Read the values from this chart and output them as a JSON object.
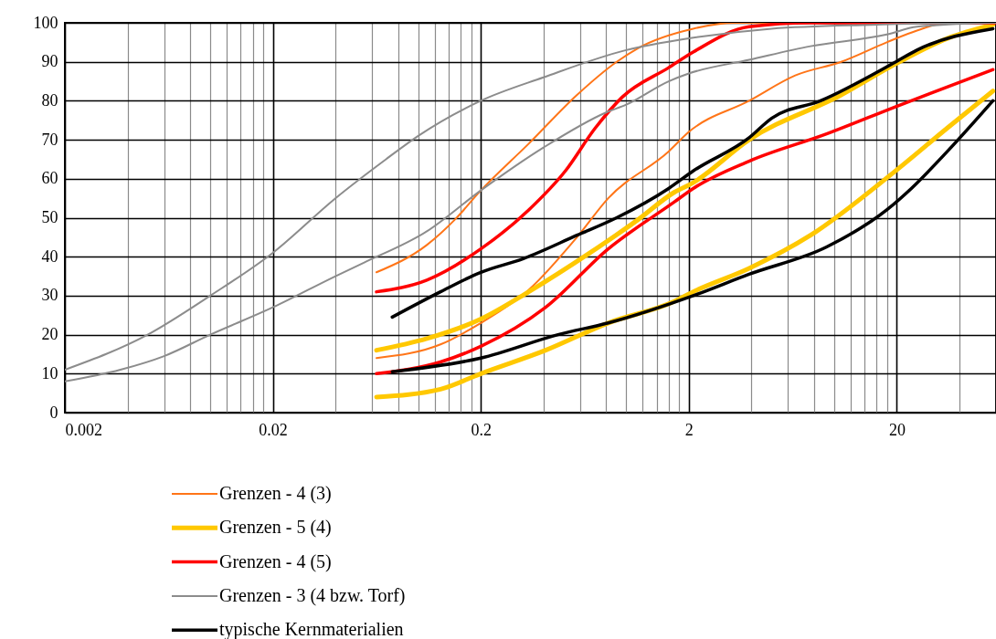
{
  "chart_data": {
    "type": "line",
    "log": "x",
    "grid": true,
    "legend": "bottom",
    "marker": "none",
    "line_style": "solid",
    "xlim": [
      0.002,
      60
    ],
    "ylim": [
      0,
      100
    ],
    "yticks": [
      0,
      10,
      20,
      30,
      40,
      50,
      60,
      70,
      80,
      90,
      100
    ],
    "xticks": [
      0.002,
      {
        "value": 0.004,
        "label": null
      },
      {
        "value": 0.006,
        "label": null
      },
      {
        "value": 0.008,
        "label": null
      },
      {
        "value": 0.01,
        "label": null
      },
      {
        "value": 0.012,
        "label": null
      },
      {
        "value": 0.014,
        "label": null
      },
      {
        "value": 0.016,
        "label": null
      },
      {
        "value": 0.018,
        "label": null
      },
      0.02,
      {
        "value": 0.04,
        "label": null
      },
      {
        "value": 0.06,
        "label": null
      },
      {
        "value": 0.08,
        "label": null
      },
      {
        "value": 0.1,
        "label": null
      },
      {
        "value": 0.12,
        "label": null
      },
      {
        "value": 0.14,
        "label": null
      },
      {
        "value": 0.16,
        "label": null
      },
      {
        "value": 0.18,
        "label": null
      },
      0.2,
      {
        "value": 0.4,
        "label": null
      },
      {
        "value": 0.6,
        "label": null
      },
      {
        "value": 0.8,
        "label": null
      },
      {
        "value": 1,
        "label": null
      },
      {
        "value": 1.2,
        "label": null
      },
      {
        "value": 1.4,
        "label": null
      },
      {
        "value": 1.6,
        "label": null
      },
      {
        "value": 1.8,
        "label": null
      },
      2,
      {
        "value": 4,
        "label": null
      },
      {
        "value": 6,
        "label": null
      },
      {
        "value": 8,
        "label": null
      },
      {
        "value": 10,
        "label": null
      },
      {
        "value": 12,
        "label": null
      },
      {
        "value": 14,
        "label": null
      },
      {
        "value": 16,
        "label": null
      },
      {
        "value": 18,
        "label": null
      },
      20,
      {
        "value": 40,
        "label": null
      },
      {
        "value": 60,
        "label": null
      }
    ],
    "series": [
      {
        "name": "Grenzen  - 4 (3)",
        "color": "#ff7518",
        "x": [
          0.063,
          0.11,
          0.15,
          0.2,
          0.34,
          0.58,
          0.9,
          1.14,
          2.1,
          3.35,
          60
        ],
        "values": [
          36,
          43,
          49.5,
          57,
          69,
          81.5,
          90,
          93.5,
          98.5,
          100,
          100
        ]
      },
      {
        "color": "#ff7518",
        "x": [
          0.063,
          0.128,
          0.2,
          0.34,
          0.58,
          0.82,
          1.6,
          2,
          3.9,
          6.5,
          10.8,
          17.9,
          25,
          35,
          60
        ],
        "values": [
          14,
          17.5,
          23,
          31.5,
          45,
          55,
          67,
          72,
          80,
          86.5,
          90,
          95,
          98,
          100,
          100
        ]
      },
      {
        "name": "Grenzen  - 5 (4)",
        "color": "#ffc800",
        "x": [
          0.063,
          0.11,
          0.2,
          0.34,
          0.67,
          1.14,
          1.7,
          2.1,
          3.9,
          10.8,
          19.8,
          35,
          58
        ],
        "values": [
          16,
          19,
          24,
          31,
          41,
          49.5,
          56.5,
          59,
          70,
          81.5,
          89.5,
          96,
          99.5
        ]
      },
      {
        "color": "#ffc800",
        "x": [
          0.063,
          0.128,
          0.2,
          0.41,
          0.82,
          1.7,
          2.1,
          3.9,
          7.7,
          19.2,
          35,
          58
        ],
        "values": [
          4,
          6,
          10,
          16,
          23,
          28.5,
          31,
          37,
          45.5,
          61.5,
          73,
          82.5
        ]
      },
      {
        "name": "Grenzen  - 4 (5)",
        "color": "#ff0000",
        "x": [
          0.063,
          0.11,
          0.2,
          0.34,
          0.51,
          0.71,
          0.96,
          1.6,
          2.1,
          3.9,
          7.7,
          60
        ],
        "values": [
          31,
          34,
          42,
          52,
          62,
          73,
          81,
          88.5,
          92.5,
          99,
          100,
          100
        ]
      },
      {
        "color": "#ff0000",
        "x": [
          0.063,
          0.128,
          0.2,
          0.41,
          0.82,
          1.7,
          2.1,
          3.9,
          9.2,
          19.8,
          58
        ],
        "values": [
          10,
          13,
          17,
          27,
          42,
          54,
          57.5,
          64.5,
          71.5,
          78.5,
          88
        ]
      },
      {
        "name": "Grenzen  - 3 (4 bzw. Torf)",
        "color": "#8c8c8c",
        "x": [
          0.002,
          0.005,
          0.01,
          0.02,
          0.04,
          0.07,
          0.1,
          0.2,
          0.4,
          1,
          2,
          5,
          15,
          60
        ],
        "values": [
          11,
          20,
          30,
          41,
          55,
          65,
          71,
          80,
          86,
          93,
          96,
          98.5,
          99.5,
          100
        ]
      },
      {
        "color": "#8c8c8c",
        "x": [
          0.002,
          0.0037,
          0.006,
          0.01,
          0.02,
          0.04,
          0.055,
          0.11,
          0.2,
          0.4,
          0.8,
          1,
          1.6,
          2,
          3.9,
          7.7,
          17.9,
          25,
          58
        ],
        "values": [
          8,
          11,
          14.5,
          20,
          27,
          35,
          38.5,
          46.5,
          57,
          68,
          77,
          79,
          85,
          87,
          90.5,
          94,
          97,
          99,
          100
        ]
      },
      {
        "name": "typische Kernmaterialien",
        "color": "#000000",
        "x": [
          0.075,
          0.128,
          0.2,
          0.32,
          0.58,
          0.9,
          1.6,
          2.1,
          3.9,
          5,
          8.6,
          19.8,
          25,
          58
        ],
        "values": [
          24.5,
          31,
          36,
          39.5,
          45.5,
          50,
          57.5,
          62,
          70.5,
          75.5,
          80,
          90,
          93,
          98.5
        ]
      },
      {
        "color": "#000000",
        "x": [
          0.075,
          0.2,
          0.47,
          0.82,
          2.1,
          3.9,
          9.2,
          17.9,
          23.5,
          35,
          58
        ],
        "values": [
          10.5,
          14,
          20,
          23,
          30,
          35.5,
          42.5,
          52,
          57.5,
          67,
          80
        ]
      }
    ]
  }
}
